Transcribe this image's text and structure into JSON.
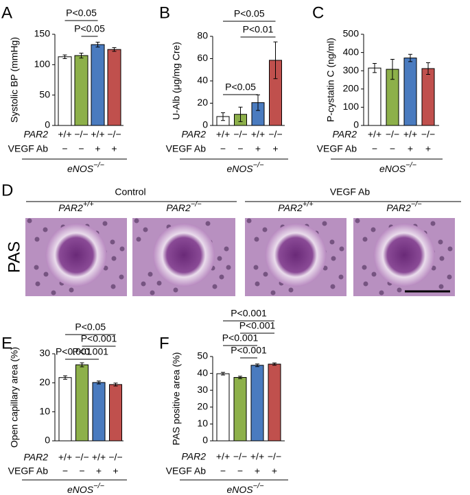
{
  "chart_data": [
    {
      "type": "bar",
      "label": "A",
      "y_label": "Systolic BP (mmHg)",
      "categories": [
        "+/+",
        "−/−",
        "+/+",
        "−/−"
      ],
      "vegf_ab": [
        "−",
        "−",
        "+",
        "+"
      ],
      "row_labels": [
        "PAR2",
        "VEGF Ab"
      ],
      "group_label": {
        "text": "eNOS",
        "sup": "−/−"
      },
      "values": [
        113,
        115,
        133,
        125
      ],
      "errors": [
        3,
        4,
        4,
        3
      ],
      "colors": [
        "#ffffff",
        "#8db04a",
        "#4a7bbf",
        "#c0504d"
      ],
      "ylim": [
        0,
        150
      ],
      "yticks": [
        0,
        50,
        100,
        150
      ],
      "annotations": [
        {
          "text": "P<0.05",
          "from": 0,
          "to": 2
        },
        {
          "text": "P<0.05",
          "from": 1,
          "to": 2
        }
      ]
    },
    {
      "type": "bar",
      "label": "B",
      "y_label": "U-Alb (μg/mg Cre)",
      "categories": [
        "+/+",
        "−/−",
        "+/+",
        "−/−"
      ],
      "vegf_ab": [
        "−",
        "−",
        "+",
        "+"
      ],
      "row_labels": [
        "PAR2",
        "VEGF Ab"
      ],
      "group_label": {
        "text": "eNOS",
        "sup": "−/−"
      },
      "values": [
        8,
        10,
        20.5,
        58.5
      ],
      "errors": [
        3.5,
        6.5,
        7,
        16.5
      ],
      "colors": [
        "#ffffff",
        "#8db04a",
        "#4a7bbf",
        "#c0504d"
      ],
      "ylim": [
        0,
        80
      ],
      "yticks": [
        0,
        20,
        40,
        60,
        80
      ],
      "annotations": [
        {
          "text": "P<0.05",
          "from": 0,
          "to": 3
        },
        {
          "text": "P<0.01",
          "from": 1,
          "to": 3
        },
        {
          "text": "P<0.05",
          "from": 0,
          "to": 2
        }
      ]
    },
    {
      "type": "bar",
      "label": "C",
      "y_label": "P-cystatin C (ng/ml)",
      "categories": [
        "+/+",
        "−/−",
        "+/+",
        "−/−"
      ],
      "vegf_ab": [
        "−",
        "−",
        "+",
        "+"
      ],
      "row_labels": [
        "PAR2",
        "VEGF Ab"
      ],
      "group_label": {
        "text": "eNOS",
        "sup": "−/−"
      },
      "values": [
        315,
        308,
        370,
        312
      ],
      "errors": [
        25,
        55,
        20,
        32
      ],
      "colors": [
        "#ffffff",
        "#8db04a",
        "#4a7bbf",
        "#c0504d"
      ],
      "ylim": [
        0,
        500
      ],
      "yticks": [
        0,
        100,
        200,
        300,
        400,
        500
      ],
      "annotations": []
    },
    {
      "type": "bar",
      "label": "E",
      "y_label": "Open capillary area (%)",
      "categories": [
        "+/+",
        "−/−",
        "+/+",
        "−/−"
      ],
      "vegf_ab": [
        "−",
        "−",
        "+",
        "+"
      ],
      "row_labels": [
        "PAR2",
        "VEGF Ab"
      ],
      "group_label": {
        "text": "eNOS",
        "sup": "−/−"
      },
      "values": [
        21.8,
        26.2,
        20.1,
        19.4
      ],
      "errors": [
        0.6,
        0.7,
        0.5,
        0.5
      ],
      "colors": [
        "#ffffff",
        "#8db04a",
        "#4a7bbf",
        "#c0504d"
      ],
      "ylim": [
        0,
        30
      ],
      "yticks": [
        0,
        10,
        20,
        30
      ],
      "annotations": [
        {
          "text": "P<0.05",
          "from": 0,
          "to": 3
        },
        {
          "text": "P<0.001",
          "from": 1,
          "to": 3
        },
        {
          "text": "P<0.001",
          "from": 0,
          "to": 1
        },
        {
          "text": "P<0.001",
          "from": 1,
          "to": 2
        }
      ]
    },
    {
      "type": "bar",
      "label": "F",
      "y_label": "PAS positive area (%)",
      "categories": [
        "+/+",
        "−/−",
        "+/+",
        "−/−"
      ],
      "vegf_ab": [
        "−",
        "−",
        "+",
        "+"
      ],
      "row_labels": [
        "PAR2",
        "VEGF Ab"
      ],
      "group_label": {
        "text": "eNOS",
        "sup": "−/−"
      },
      "values": [
        39.8,
        37.6,
        44.8,
        45.5
      ],
      "errors": [
        0.8,
        0.7,
        0.8,
        0.7
      ],
      "colors": [
        "#ffffff",
        "#8db04a",
        "#4a7bbf",
        "#c0504d"
      ],
      "ylim": [
        0,
        50
      ],
      "yticks": [
        0,
        10,
        20,
        30,
        40,
        50
      ],
      "annotations": [
        {
          "text": "P<0.001",
          "from": 0,
          "to": 3
        },
        {
          "text": "P<0.001",
          "from": 1,
          "to": 3
        },
        {
          "text": "P<0.001",
          "from": 0,
          "to": 2
        },
        {
          "text": "P<0.001",
          "from": 1,
          "to": 2
        }
      ]
    }
  ],
  "histology": {
    "label": "D",
    "stain": "PAS",
    "groups": [
      "Control",
      "VEGF Ab"
    ],
    "columns": [
      {
        "gene": "PAR2",
        "sup": "+/+"
      },
      {
        "gene": "PAR2",
        "sup": "−/−"
      },
      {
        "gene": "PAR2",
        "sup": "+/+"
      },
      {
        "gene": "PAR2",
        "sup": "−/−"
      }
    ]
  }
}
